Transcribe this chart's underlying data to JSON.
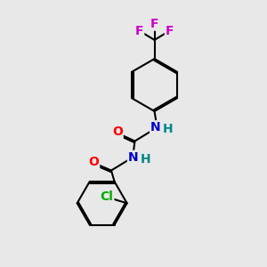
{
  "background_color": "#e8e8e8",
  "bond_color": "#000000",
  "bond_width": 1.5,
  "atom_colors": {
    "O": "#ff0000",
    "N": "#0000cc",
    "Cl": "#00aa00",
    "F": "#cc00cc",
    "H": "#008888",
    "C": "#000000"
  },
  "font_size_atom": 10,
  "font_size_small": 9,
  "dbo": 0.055
}
